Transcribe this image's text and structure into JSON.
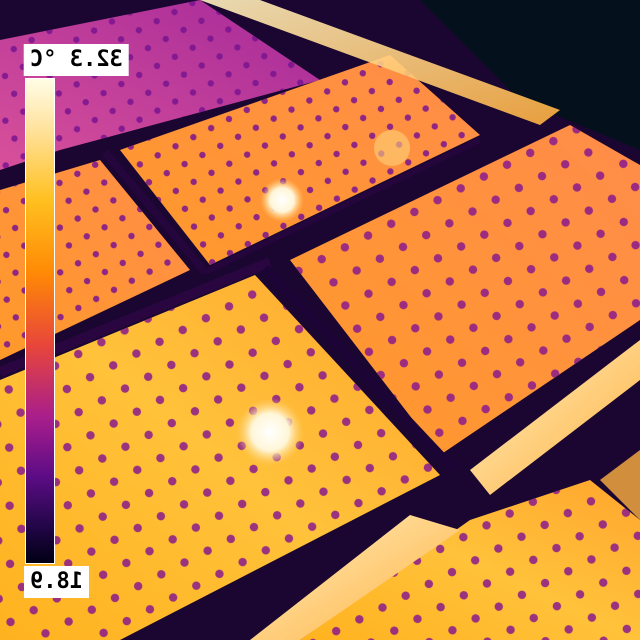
{
  "thermal_image": {
    "scale": {
      "max_label": "32.3 °C",
      "min_label": "18.9",
      "palette": "iron",
      "colors": [
        "#fffde6",
        "#ffe3a0",
        "#ffc020",
        "#ff8a05",
        "#e8463a",
        "#a81e8c",
        "#5d0c86",
        "#24064a",
        "#000014"
      ]
    },
    "hotspots": [
      {
        "name": "hotspot-large",
        "temp_level": 1.0
      },
      {
        "name": "hotspot-small",
        "temp_level": 0.95
      }
    ]
  }
}
